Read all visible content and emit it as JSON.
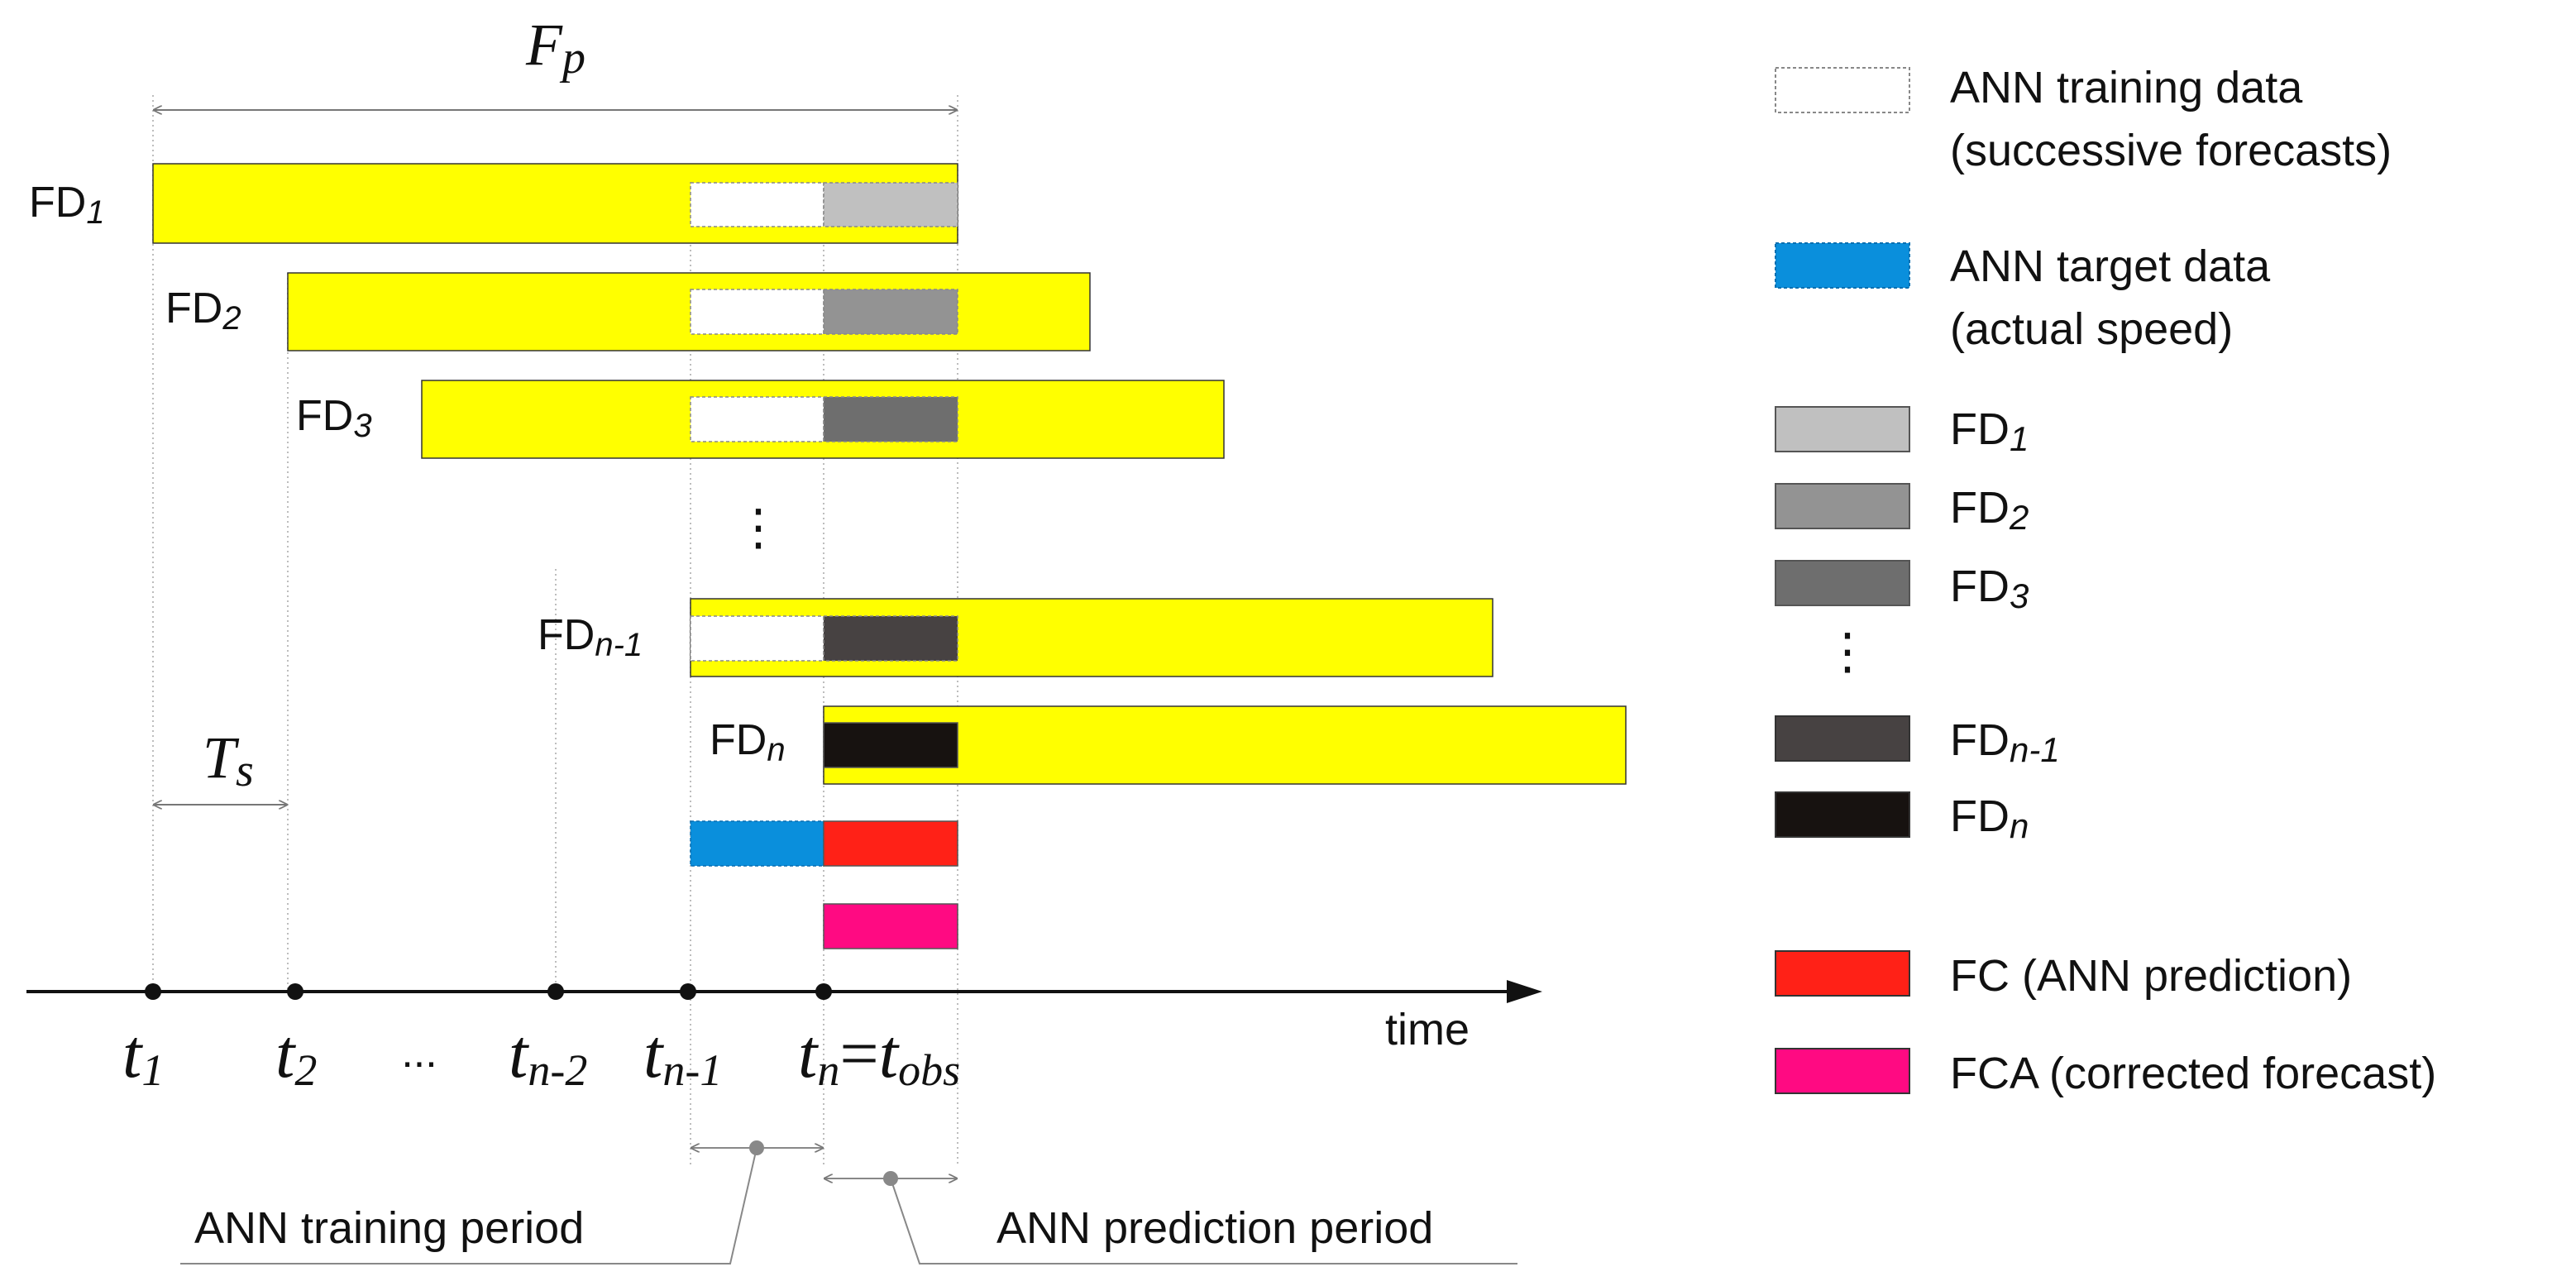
{
  "colors": {
    "forecast_bar": "#ffff00",
    "target": "#0a8fdc",
    "prediction": "#ff2117",
    "corrected": "#ff0a82",
    "fd1": "#c0c0c0",
    "fd2": "#939393",
    "fd3": "#6e6e6e",
    "fdn1": "#474242",
    "fdn": "#171210"
  },
  "top_span": {
    "main": "F",
    "sub": "p"
  },
  "interval": {
    "main": "T",
    "sub": "s"
  },
  "rows": [
    {
      "key": "fd1",
      "base": "FD",
      "sub": "1"
    },
    {
      "key": "fd2",
      "base": "FD",
      "sub": "2"
    },
    {
      "key": "fd3",
      "base": "FD",
      "sub": "3"
    },
    {
      "key": "fdn1",
      "base": "FD",
      "sub": "n-1"
    },
    {
      "key": "fdn",
      "base": "FD",
      "sub": "n"
    }
  ],
  "vertical_ellipsis": "⋮",
  "axis": {
    "label": "time",
    "ticks": [
      {
        "main": "t",
        "sub": "1"
      },
      {
        "main": "t",
        "sub": "2"
      },
      {
        "main": "t",
        "sub": "n-2"
      },
      {
        "main": "t",
        "sub": "n-1"
      },
      {
        "main": "t",
        "sub": "n",
        "eq": "=",
        "main2": "t",
        "sub2": "obs"
      }
    ],
    "dots": "..."
  },
  "periods": {
    "training": "ANN training period",
    "prediction": "ANN prediction period"
  },
  "legend": {
    "training_line1": "ANN training data",
    "training_line2": "(successive forecasts)",
    "target_line1": "ANN target data",
    "target_line2": "(actual speed)",
    "fd_items": [
      {
        "base": "FD",
        "sub": "1"
      },
      {
        "base": "FD",
        "sub": "2"
      },
      {
        "base": "FD",
        "sub": "3"
      },
      {
        "base": "FD",
        "sub": "n-1"
      },
      {
        "base": "FD",
        "sub": "n"
      }
    ],
    "ellipsis": "⋮",
    "fc": "FC (ANN prediction)",
    "fca": "FCA (corrected forecast)"
  }
}
